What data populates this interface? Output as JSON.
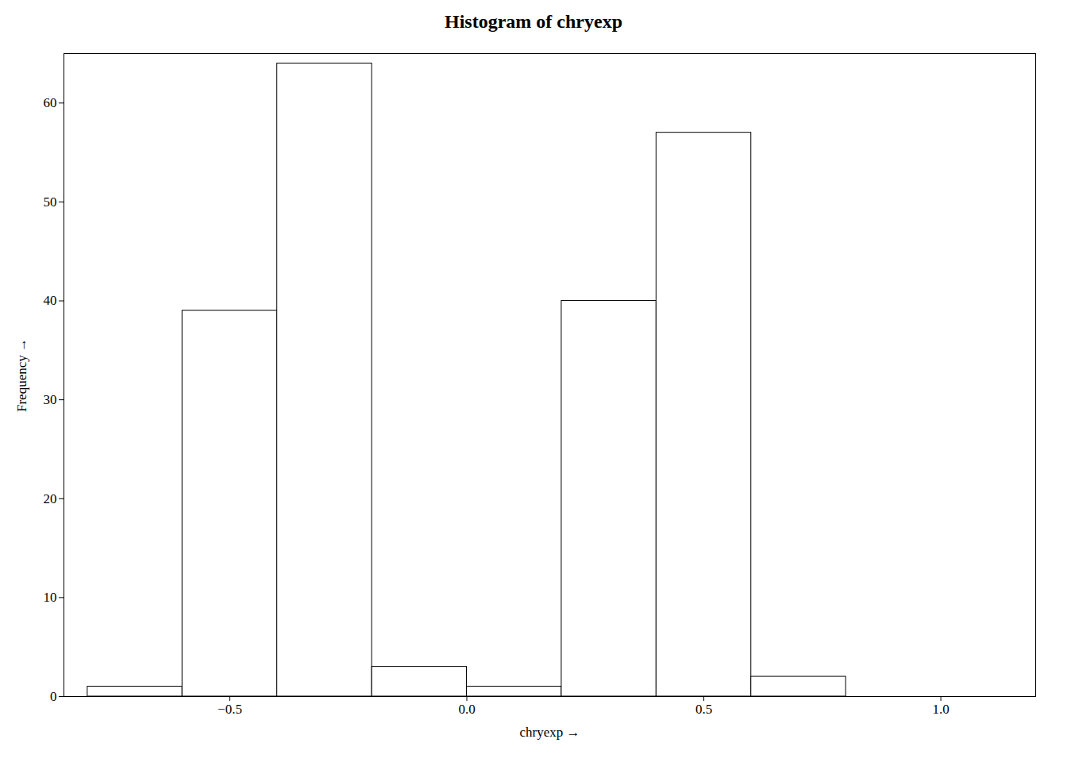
{
  "chart_data": {
    "type": "histogram",
    "title": "Histogram of chryexp",
    "xlabel": "chryexp",
    "ylabel": "Frequency",
    "bins": [
      -0.8,
      -0.6,
      -0.4,
      -0.2,
      0.0,
      0.2,
      0.4,
      0.6,
      0.8
    ],
    "values": [
      1,
      39,
      64,
      3,
      1,
      40,
      57,
      2
    ],
    "color": "#ffffff",
    "xlim": [
      -0.85,
      1.2
    ],
    "ylim": [
      0,
      65
    ],
    "xticks": [
      {
        "value": -0.5,
        "label": "−0.5"
      },
      {
        "value": 0,
        "label": "0.0"
      },
      {
        "value": 0.5,
        "label": "0.5"
      },
      {
        "value": 1,
        "label": "1.0"
      }
    ],
    "yticks": [
      0,
      10,
      20,
      30,
      40,
      50,
      60
    ],
    "grid": false
  }
}
